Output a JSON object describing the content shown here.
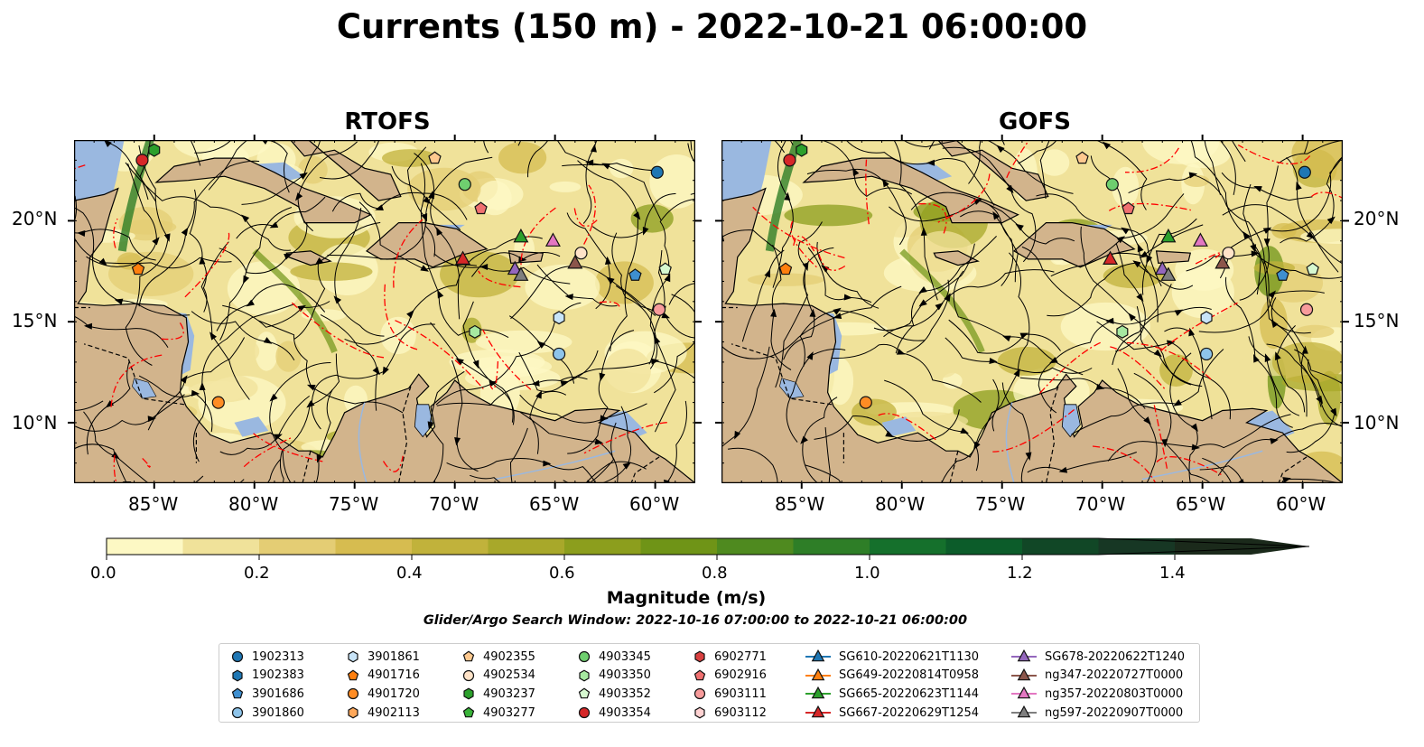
{
  "title": "Currents (150 m) - 2022-10-21 06:00:00",
  "panels": [
    {
      "title": "RTOFS"
    },
    {
      "title": "GOFS"
    }
  ],
  "lon_ticks": [
    "85°W",
    "80°W",
    "75°W",
    "70°W",
    "65°W",
    "60°W"
  ],
  "lat_ticks": [
    "20°N",
    "15°N",
    "10°N"
  ],
  "colorbar": {
    "label": "Magnitude (m/s)",
    "ticks": [
      "0.0",
      "0.2",
      "0.4",
      "0.6",
      "0.8",
      "1.0",
      "1.2",
      "1.4"
    ],
    "min": 0,
    "max": 1.5,
    "colors": [
      "#fdf8c4",
      "#f0e29a",
      "#e4cd74",
      "#d6bc50",
      "#c1b23b",
      "#a8a82a",
      "#8c9e1d",
      "#6f9417",
      "#4f8a1f",
      "#2e7e27",
      "#15702c",
      "#0c5c2a",
      "#114726",
      "#173724",
      "#1b2a1b"
    ]
  },
  "subtitle": "Glider/Argo Search Window: 2022-10-16 07:00:00 to 2022-10-21 06:00:00",
  "legend": [
    {
      "label": "1902313",
      "marker": "circle",
      "color": "#1f77b4"
    },
    {
      "label": "1902383",
      "marker": "hexagon",
      "color": "#1f77b4"
    },
    {
      "label": "3901686",
      "marker": "pentagon",
      "color": "#3e8fd0"
    },
    {
      "label": "3901860",
      "marker": "circle",
      "color": "#8ec4ea"
    },
    {
      "label": "3901861",
      "marker": "hexagon",
      "color": "#c8e4f8"
    },
    {
      "label": "4901716",
      "marker": "pentagon",
      "color": "#ff7f0e"
    },
    {
      "label": "4901720",
      "marker": "circle",
      "color": "#ff8c24"
    },
    {
      "label": "4902113",
      "marker": "hexagon",
      "color": "#ffa85a"
    },
    {
      "label": "4902355",
      "marker": "pentagon",
      "color": "#ffc98f"
    },
    {
      "label": "4902534",
      "marker": "circle",
      "color": "#ffe3c8"
    },
    {
      "label": "4903237",
      "marker": "hexagon",
      "color": "#2ca02c"
    },
    {
      "label": "4903277",
      "marker": "pentagon",
      "color": "#39b339"
    },
    {
      "label": "4903345",
      "marker": "circle",
      "color": "#6fcf6f"
    },
    {
      "label": "4903350",
      "marker": "hexagon",
      "color": "#a6e8a0"
    },
    {
      "label": "4903352",
      "marker": "pentagon",
      "color": "#d6f8d0"
    },
    {
      "label": "4903354",
      "marker": "circle",
      "color": "#d62728"
    },
    {
      "label": "6902771",
      "marker": "hexagon",
      "color": "#d94040"
    },
    {
      "label": "6902916",
      "marker": "pentagon",
      "color": "#f07070"
    },
    {
      "label": "6903111",
      "marker": "circle",
      "color": "#f79b9b"
    },
    {
      "label": "6903112",
      "marker": "hexagon",
      "color": "#ffd2d2"
    },
    {
      "label": "SG610-20220621T1130",
      "marker": "triangle",
      "color": "#1f77b4"
    },
    {
      "label": "SG649-20220814T0958",
      "marker": "triangle",
      "color": "#ff7f0e"
    },
    {
      "label": "SG665-20220623T1144",
      "marker": "triangle",
      "color": "#2ca02c"
    },
    {
      "label": "SG667-20220629T1254",
      "marker": "triangle",
      "color": "#d62728"
    },
    {
      "label": "SG678-20220622T1240",
      "marker": "triangle",
      "color": "#9467bd"
    },
    {
      "label": "ng347-20220727T0000",
      "marker": "triangle",
      "color": "#8c564b"
    },
    {
      "label": "ng357-20220803T0000",
      "marker": "triangle",
      "color": "#e377c2"
    },
    {
      "label": "ng597-20220907T0000",
      "marker": "triangle",
      "color": "#7f7f7f"
    }
  ],
  "map_extent": {
    "lon": [
      -89,
      -58
    ],
    "lat": [
      7,
      24
    ]
  },
  "observations": [
    {
      "id": "1902313",
      "lon": -59.9,
      "lat": 22.4
    },
    {
      "id": "4903237",
      "lon": -85.0,
      "lat": 23.5
    },
    {
      "id": "4903354",
      "lon": -85.6,
      "lat": 23.0
    },
    {
      "id": "4902534",
      "lon": -63.7,
      "lat": 18.4
    },
    {
      "id": "4901720",
      "lon": -81.8,
      "lat": 11.0
    },
    {
      "id": "4901716",
      "lon": -85.8,
      "lat": 17.6
    },
    {
      "id": "3901861",
      "lon": -64.8,
      "lat": 15.2
    },
    {
      "id": "3901860",
      "lon": -64.8,
      "lat": 13.4
    },
    {
      "id": "3901686",
      "lon": -61.0,
      "lat": 17.3
    },
    {
      "id": "4903350",
      "lon": -69.0,
      "lat": 14.5
    },
    {
      "id": "4903345",
      "lon": -69.5,
      "lat": 21.8
    },
    {
      "id": "6902916",
      "lon": -68.7,
      "lat": 20.6
    },
    {
      "id": "6903111",
      "lon": -59.8,
      "lat": 15.6
    },
    {
      "id": "4902355",
      "lon": -71.0,
      "lat": 23.1
    },
    {
      "id": "4903352",
      "lon": -59.5,
      "lat": 17.6
    },
    {
      "id": "SG665-20220623T1144",
      "lon": -66.7,
      "lat": 19.2
    },
    {
      "id": "ng357-20220803T0000",
      "lon": -65.1,
      "lat": 19.0
    },
    {
      "id": "SG667-20220629T1254",
      "lon": -69.6,
      "lat": 18.1
    },
    {
      "id": "SG678-20220622T1240",
      "lon": -67.0,
      "lat": 17.6
    },
    {
      "id": "ng597-20220907T0000",
      "lon": -66.7,
      "lat": 17.3
    },
    {
      "id": "ng347-20220727T0000",
      "lon": -64.0,
      "lat": 17.9
    }
  ]
}
